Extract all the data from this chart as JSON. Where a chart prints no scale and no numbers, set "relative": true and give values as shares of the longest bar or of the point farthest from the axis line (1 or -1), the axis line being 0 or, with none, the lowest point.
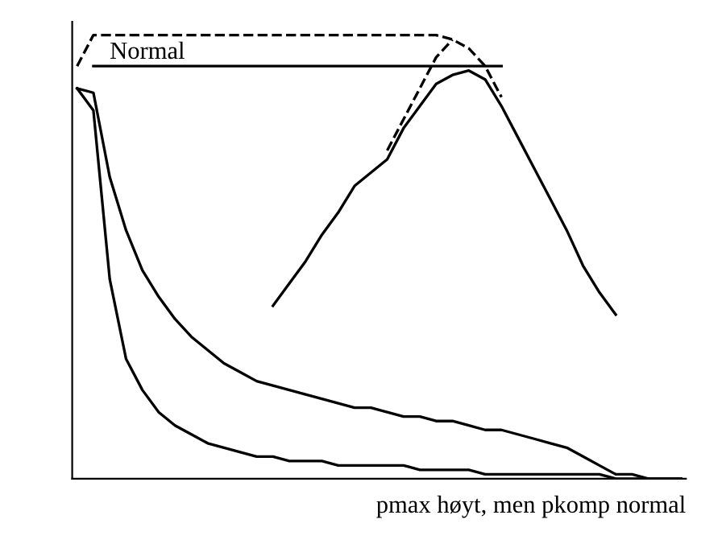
{
  "chart_data": {
    "type": "line",
    "relative": true,
    "xlabel": "pmax høyt, men pkomp normal",
    "legend": false,
    "marker": "none",
    "categories": [
      null,
      null,
      null,
      null,
      null,
      null,
      null,
      null,
      null,
      null,
      null,
      null,
      null,
      null,
      null,
      null,
      null,
      null,
      null,
      null,
      null,
      null,
      null,
      null,
      null,
      null,
      null,
      null,
      null,
      null,
      null,
      null,
      null,
      null,
      null,
      null,
      null,
      null
    ],
    "series": [
      {
        "color": "#000000",
        "line_style": "solid",
        "values": [
          0.88,
          0.87,
          0.68,
          0.56,
          0.47,
          0.41,
          0.36,
          0.32,
          0.29,
          0.26,
          0.24,
          0.22,
          0.21,
          0.2,
          0.19,
          0.18,
          0.17,
          0.16,
          0.16,
          0.15,
          0.14,
          0.14,
          0.13,
          0.13,
          0.12,
          0.11,
          0.11,
          0.1,
          0.09,
          0.08,
          0.07,
          0.05,
          0.03,
          0.01,
          0.01,
          0.0,
          0.0,
          0.0
        ]
      },
      {
        "color": "#000000",
        "line_style": "solid",
        "values": [
          0.88,
          0.83,
          0.45,
          0.27,
          0.2,
          0.15,
          0.12,
          0.1,
          0.08,
          0.07,
          0.06,
          0.05,
          0.05,
          0.04,
          0.04,
          0.04,
          0.03,
          0.03,
          0.03,
          0.03,
          0.03,
          0.02,
          0.02,
          0.02,
          0.02,
          0.01,
          0.01,
          0.01,
          0.01,
          0.01,
          0.01,
          0.01,
          0.01,
          0.0,
          0.0,
          0.0,
          0.0,
          0.0
        ]
      },
      {
        "color": "#000000",
        "line_style": "solid",
        "values": [
          null,
          null,
          null,
          null,
          null,
          null,
          null,
          null,
          null,
          null,
          null,
          null,
          0.39,
          0.44,
          0.49,
          0.55,
          0.6,
          0.66,
          0.69,
          0.72,
          0.79,
          0.84,
          0.89,
          0.91,
          0.92,
          0.9,
          0.84,
          0.77,
          0.7,
          0.63,
          0.56,
          0.48,
          0.42,
          0.37,
          null,
          null,
          null,
          null
        ]
      },
      {
        "color": "#000000",
        "line_style": "dashed",
        "values": [
          0.93,
          1.0,
          1.0,
          1.0,
          1.0,
          1.0,
          1.0,
          1.0,
          1.0,
          1.0,
          1.0,
          1.0,
          1.0,
          1.0,
          1.0,
          1.0,
          1.0,
          1.0,
          1.0,
          1.0,
          1.0,
          1.0,
          1.0,
          0.99,
          0.97,
          0.93,
          0.86,
          null,
          null,
          null,
          null,
          null,
          null,
          null,
          null,
          null,
          null,
          null
        ]
      },
      {
        "color": "#000000",
        "line_style": "dashed",
        "values": [
          null,
          null,
          null,
          null,
          null,
          null,
          null,
          null,
          null,
          null,
          null,
          null,
          null,
          null,
          null,
          null,
          null,
          null,
          null,
          0.74,
          0.81,
          0.88,
          0.95,
          0.99,
          null,
          null,
          null,
          null,
          null,
          null,
          null,
          null,
          null,
          null,
          null,
          null,
          null,
          null
        ]
      },
      {
        "name": "Normal",
        "color": "#000000",
        "line_style": "solid",
        "values": [
          null,
          0.93,
          0.93,
          0.93,
          0.93,
          0.93,
          0.93,
          0.93,
          0.93,
          0.93,
          0.93,
          0.93,
          0.93,
          0.93,
          0.93,
          0.93,
          0.93,
          0.93,
          0.93,
          0.93,
          0.93,
          0.93,
          0.93,
          0.93,
          0.93,
          0.93,
          0.93,
          null,
          null,
          null,
          null,
          null,
          null,
          null,
          null,
          null,
          null,
          null
        ]
      }
    ]
  }
}
